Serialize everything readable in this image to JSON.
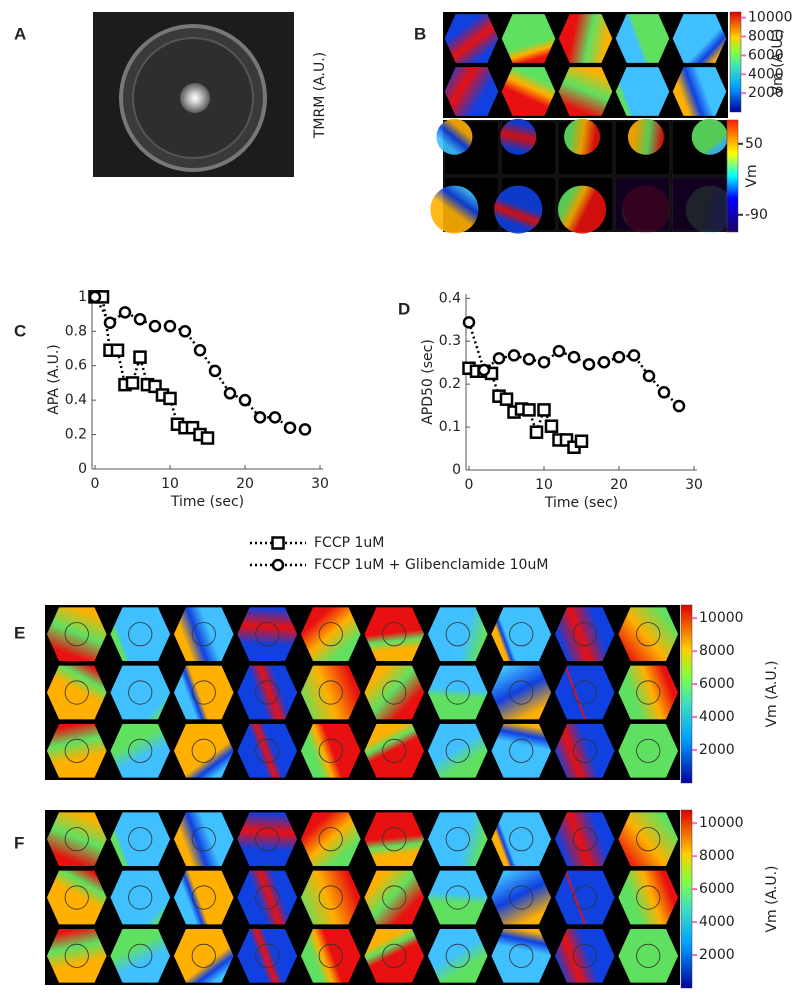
{
  "panel_a": {
    "label": "A",
    "axis_label": "TMRM (A.U.)"
  },
  "panel_b": {
    "label": "B",
    "colorbar_top": {
      "label": "Vm (A.U.)",
      "clim": [
        0,
        10600
      ],
      "ticks": [
        10000,
        8000,
        6000,
        4000,
        2000
      ]
    },
    "colorbar_bottom": {
      "label": "Vm",
      "clim": [
        -124,
        97
      ],
      "ticks": [
        50,
        -90
      ]
    }
  },
  "chart_data": [
    {
      "type": "line",
      "label": "C",
      "xlabel": "Time (sec)",
      "ylabel": "APA (A.U.)",
      "xlim": [
        -0.4,
        30.4
      ],
      "ylim": [
        0,
        1.04
      ],
      "xticks": [
        0,
        10,
        20,
        30
      ],
      "yticks": [
        0,
        0.2,
        0.4,
        0.6,
        0.8,
        1
      ],
      "series": [
        {
          "name": "FCCP 1uM",
          "color": "#000000",
          "marker": "square",
          "x": [
            0,
            1,
            2,
            3,
            4,
            5,
            6,
            7,
            8,
            9,
            10,
            11,
            12,
            13,
            14,
            15
          ],
          "values": [
            1.0,
            1.0,
            0.69,
            0.69,
            0.49,
            0.5,
            0.65,
            0.49,
            0.48,
            0.43,
            0.41,
            0.26,
            0.24,
            0.24,
            0.2,
            0.18
          ]
        },
        {
          "name": "FCCP 1uM + Glibenclamide 10uM",
          "color": "#000000",
          "marker": "circle",
          "x": [
            0,
            2,
            4,
            6,
            8,
            10,
            12,
            14,
            16,
            18,
            20,
            22,
            24,
            26,
            28
          ],
          "values": [
            1.0,
            0.85,
            0.91,
            0.87,
            0.83,
            0.83,
            0.8,
            0.69,
            0.57,
            0.44,
            0.4,
            0.3,
            0.3,
            0.24,
            0.23
          ]
        }
      ]
    },
    {
      "type": "line",
      "label": "D",
      "xlabel": "Time (sec)",
      "ylabel": "APD50 (sec)",
      "xlim": [
        -0.4,
        30.4
      ],
      "ylim": [
        0,
        0.41
      ],
      "xticks": [
        0,
        10,
        20,
        30
      ],
      "yticks": [
        0,
        0.1,
        0.2,
        0.3,
        0.4
      ],
      "series": [
        {
          "color": "#000000",
          "marker": "square",
          "x": [
            0,
            1,
            2,
            3,
            4,
            5,
            6,
            7,
            8,
            9,
            10,
            11,
            12,
            13,
            14,
            15
          ],
          "values": [
            0.237,
            0.23,
            0.23,
            0.225,
            0.172,
            0.165,
            0.135,
            0.142,
            0.14,
            0.088,
            0.14,
            0.102,
            0.07,
            0.07,
            0.053,
            0.067
          ]
        },
        {
          "color": "#000000",
          "marker": "circle",
          "x": [
            0,
            2,
            4,
            6,
            8,
            10,
            12,
            14,
            16,
            18,
            20,
            22,
            24,
            26,
            28
          ],
          "values": [
            0.344,
            0.233,
            0.26,
            0.267,
            0.258,
            0.251,
            0.277,
            0.263,
            0.246,
            0.251,
            0.263,
            0.267,
            0.219,
            0.181,
            0.149
          ]
        }
      ]
    }
  ],
  "panel_e": {
    "label": "E",
    "colorbar": {
      "label": "Vm (A.U.)",
      "clim": [
        0,
        10800
      ],
      "ticks": [
        10000,
        8000,
        6000,
        4000,
        2000
      ]
    }
  },
  "panel_f": {
    "label": "F",
    "colorbar": {
      "label": "Vm (A.U.)",
      "clim": [
        0,
        10800
      ],
      "ticks": [
        10000,
        8000,
        6000,
        4000,
        2000
      ]
    }
  }
}
